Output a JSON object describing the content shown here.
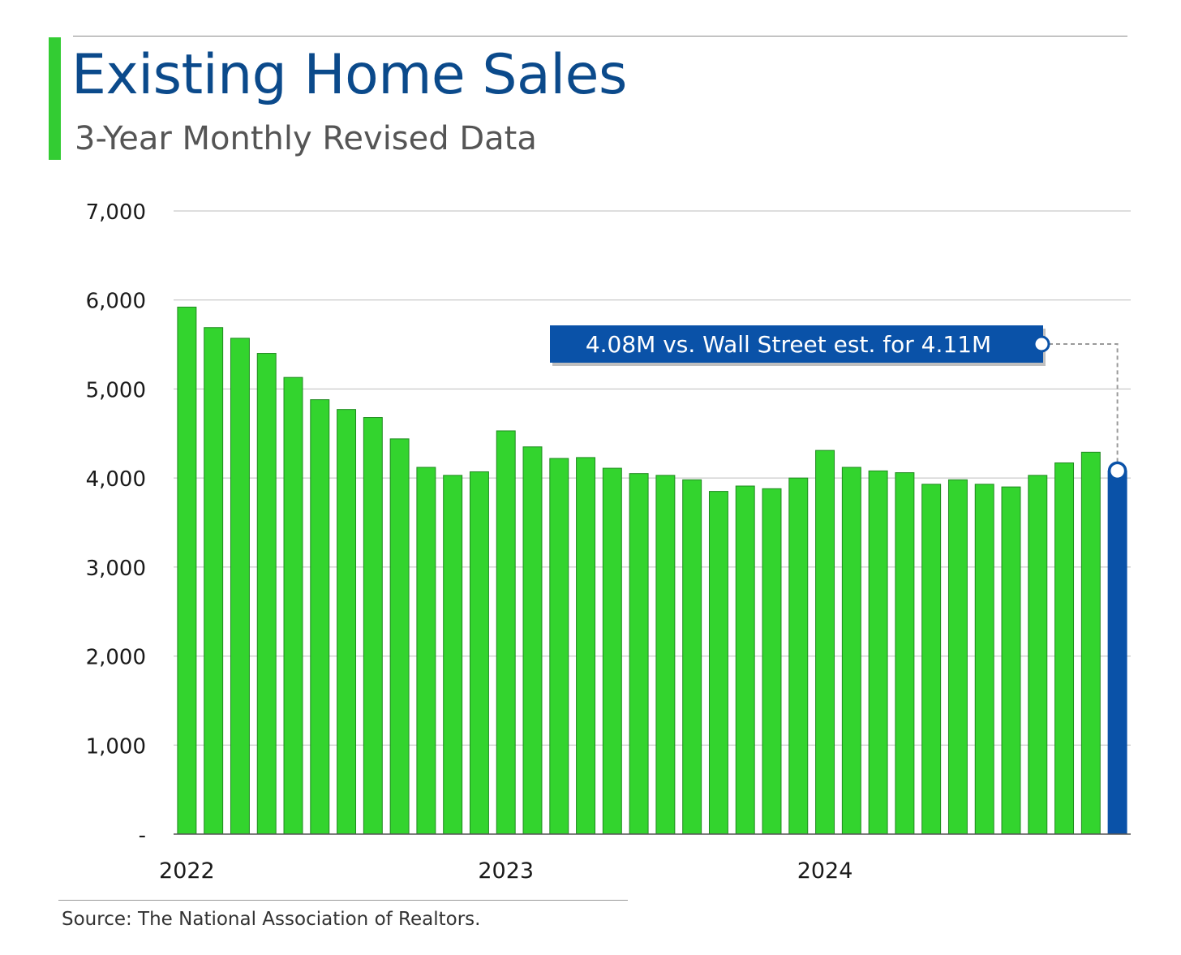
{
  "title": "Existing Home Sales",
  "subtitle": "3-Year Monthly Revised Data",
  "source": "Source: The National Association of Realtors.",
  "colors": {
    "title": "#0b4a8b",
    "subtitle": "#555555",
    "accent": "#33cc33",
    "bar": "#33d42e",
    "bar_edge": "#1f8a1f",
    "highlight": "#0a52a8",
    "grid": "#bdbdbd",
    "axis": "#555555"
  },
  "chart_data": {
    "type": "bar",
    "title": "Existing Home Sales",
    "subtitle": "3-Year Monthly Revised Data",
    "ylim": [
      0,
      7000
    ],
    "yticks": [
      0,
      1000,
      2000,
      3000,
      4000,
      5000,
      6000,
      7000
    ],
    "ytick_labels": [
      "-",
      "1,000",
      "2,000",
      "3,000",
      "4,000",
      "5,000",
      "6,000",
      "7,000"
    ],
    "xtick_labels": [
      {
        "label": "2022",
        "index": 0
      },
      {
        "label": "2023",
        "index": 12
      },
      {
        "label": "2024",
        "index": 24
      }
    ],
    "grid": true,
    "values": [
      5920,
      5690,
      5570,
      5400,
      5130,
      4880,
      4770,
      4680,
      4440,
      4120,
      4030,
      4070,
      4530,
      4350,
      4220,
      4230,
      4110,
      4050,
      4030,
      3980,
      3850,
      3910,
      3880,
      4000,
      4310,
      4120,
      4080,
      4060,
      3930,
      3980,
      3930,
      3900,
      4030,
      4170,
      4290,
      4080
    ],
    "highlight_index": 35,
    "annotation": {
      "text": "4.08M vs. Wall Street est. for 4.11M",
      "value": 4080,
      "index": 35
    }
  }
}
